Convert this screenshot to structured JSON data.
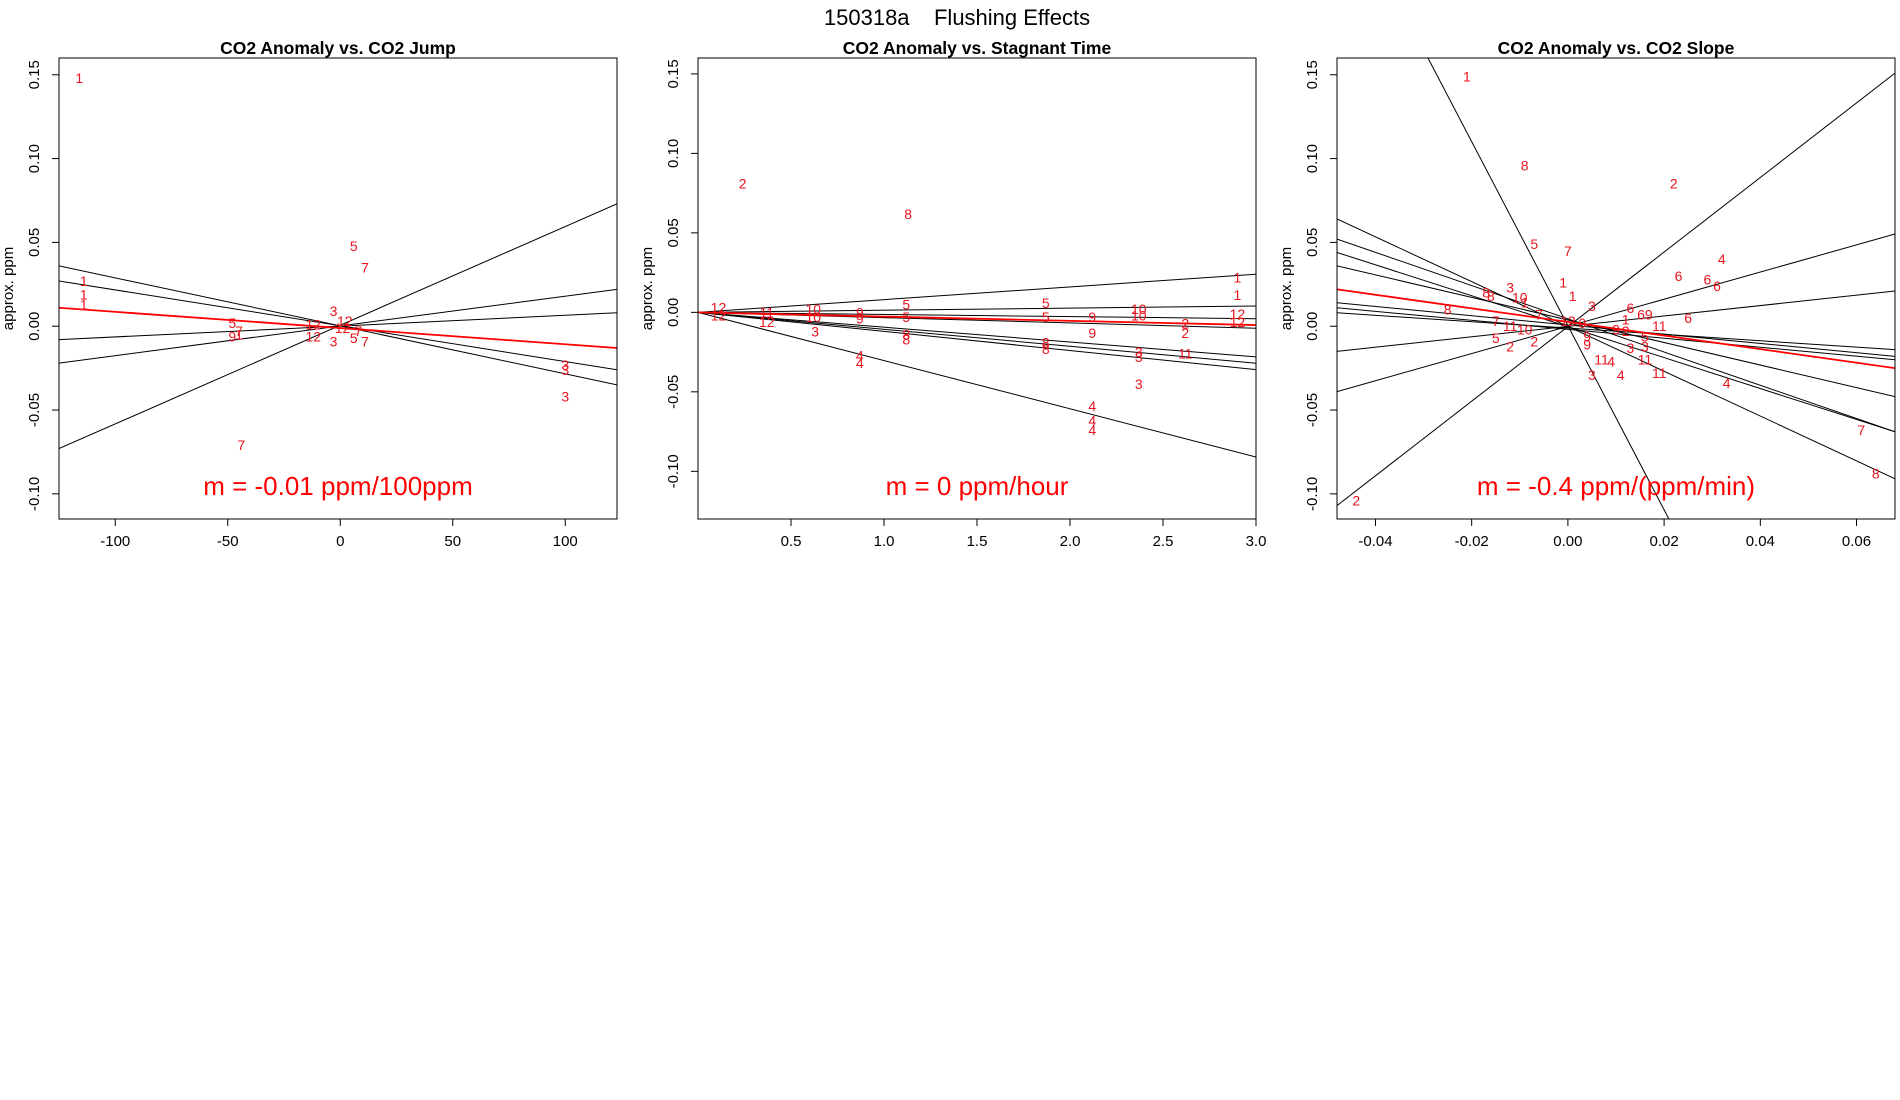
{
  "supertitle": "150318a    Flushing Effects",
  "chart_data": [
    {
      "type": "scatter",
      "title": "CO2 Anomaly vs. CO2 Jump",
      "ylabel": "approx. ppm",
      "xlim": [
        -125,
        123
      ],
      "ylim": [
        -0.115,
        0.16
      ],
      "xticks": [
        -100,
        -50,
        0,
        50,
        100
      ],
      "xticklabels": [
        "-100",
        "-50",
        "0",
        "50",
        "100"
      ],
      "yticks": [
        -0.1,
        -0.05,
        0.0,
        0.05,
        0.1,
        0.15
      ],
      "yticklabels": [
        "-0.10",
        "-0.05",
        "0.00",
        "0.05",
        "0.10",
        "0.15"
      ],
      "slope_label": "m = -0.01 ppm/100ppm",
      "fit_lines": [
        {
          "x1": -125,
          "y1": 0.036,
          "x2": 123,
          "y2": -0.035
        },
        {
          "x1": -125,
          "y1": 0.027,
          "x2": 123,
          "y2": -0.026
        },
        {
          "x1": -125,
          "y1": -0.073,
          "x2": 123,
          "y2": 0.073
        },
        {
          "x1": -125,
          "y1": -0.022,
          "x2": 123,
          "y2": 0.022
        },
        {
          "x1": -125,
          "y1": -0.008,
          "x2": 123,
          "y2": 0.008
        }
      ],
      "mean_line": {
        "x1": -125,
        "y1": 0.011,
        "x2": 123,
        "y2": -0.013
      },
      "points": [
        {
          "x": -116,
          "y": 0.148,
          "label": "1"
        },
        {
          "x": -114,
          "y": 0.027,
          "label": "1"
        },
        {
          "x": -114,
          "y": 0.019,
          "label": "1"
        },
        {
          "x": -114,
          "y": 0.013,
          "label": "1"
        },
        {
          "x": 6,
          "y": 0.048,
          "label": "5"
        },
        {
          "x": 11,
          "y": 0.035,
          "label": "7"
        },
        {
          "x": -3,
          "y": 0.009,
          "label": "3"
        },
        {
          "x": 2,
          "y": 0.003,
          "label": "12"
        },
        {
          "x": -12,
          "y": 0.001,
          "label": "12"
        },
        {
          "x": -12,
          "y": -0.006,
          "label": "12"
        },
        {
          "x": -3,
          "y": -0.009,
          "label": "3"
        },
        {
          "x": 6,
          "y": -0.007,
          "label": "5"
        },
        {
          "x": 11,
          "y": -0.009,
          "label": "7"
        },
        {
          "x": 8,
          "y": -0.003,
          "label": "7"
        },
        {
          "x": 1,
          "y": -0.001,
          "label": "12"
        },
        {
          "x": -48,
          "y": 0.002,
          "label": "5"
        },
        {
          "x": -45,
          "y": -0.003,
          "label": "7"
        },
        {
          "x": -48,
          "y": -0.006,
          "label": "9"
        },
        {
          "x": -45,
          "y": -0.005,
          "label": "1"
        },
        {
          "x": 100,
          "y": -0.023,
          "label": "3"
        },
        {
          "x": 100,
          "y": -0.026,
          "label": "3"
        },
        {
          "x": 100,
          "y": -0.042,
          "label": "3"
        },
        {
          "x": -44,
          "y": -0.071,
          "label": "7"
        }
      ]
    },
    {
      "type": "scatter",
      "title": "CO2 Anomaly vs. Stagnant Time",
      "ylabel": "approx. ppm",
      "xlim": [
        0,
        3.0
      ],
      "ylim": [
        -0.13,
        0.16
      ],
      "xticks": [
        0.5,
        1.0,
        1.5,
        2.0,
        2.5,
        3.0
      ],
      "xticklabels": [
        "0.5",
        "1.0",
        "1.5",
        "2.0",
        "2.5",
        "3.0"
      ],
      "yticks": [
        -0.1,
        -0.05,
        0.0,
        0.05,
        0.1,
        0.15
      ],
      "yticklabels": [
        "-0.10",
        "-0.05",
        "0.00",
        "0.05",
        "0.10",
        "0.15"
      ],
      "slope_label": "m = 0 ppm/hour",
      "fit_lines": [
        {
          "x1": 0,
          "y1": 0.0,
          "x2": 3.0,
          "y2": 0.024
        },
        {
          "x1": 0,
          "y1": 0.0,
          "x2": 3.0,
          "y2": 0.004
        },
        {
          "x1": 0,
          "y1": 0.0,
          "x2": 3.0,
          "y2": -0.004
        },
        {
          "x1": 0,
          "y1": 0.0,
          "x2": 3.0,
          "y2": -0.01
        },
        {
          "x1": 0,
          "y1": 0.0,
          "x2": 3.0,
          "y2": -0.028
        },
        {
          "x1": 0,
          "y1": 0.0,
          "x2": 3.0,
          "y2": -0.032
        },
        {
          "x1": 0,
          "y1": 0.0,
          "x2": 3.0,
          "y2": -0.036
        },
        {
          "x1": 0,
          "y1": 0.0,
          "x2": 3.0,
          "y2": -0.091
        }
      ],
      "mean_line": {
        "x1": 0,
        "y1": 0.0,
        "x2": 3.0,
        "y2": -0.008
      },
      "points": [
        {
          "x": 0.24,
          "y": 0.081,
          "label": "2"
        },
        {
          "x": 1.13,
          "y": 0.062,
          "label": "8"
        },
        {
          "x": 2.9,
          "y": 0.022,
          "label": "1"
        },
        {
          "x": 2.9,
          "y": 0.011,
          "label": "1"
        },
        {
          "x": 1.12,
          "y": 0.005,
          "label": "5"
        },
        {
          "x": 1.12,
          "y": -0.003,
          "label": "5"
        },
        {
          "x": 1.87,
          "y": 0.006,
          "label": "5"
        },
        {
          "x": 1.87,
          "y": -0.003,
          "label": "5"
        },
        {
          "x": 0.62,
          "y": 0.002,
          "label": "10"
        },
        {
          "x": 0.62,
          "y": -0.003,
          "label": "10"
        },
        {
          "x": 0.87,
          "y": 0.0,
          "label": "9"
        },
        {
          "x": 0.87,
          "y": -0.004,
          "label": "9"
        },
        {
          "x": 2.12,
          "y": -0.003,
          "label": "9"
        },
        {
          "x": 2.12,
          "y": -0.013,
          "label": "9"
        },
        {
          "x": 2.37,
          "y": 0.002,
          "label": "10"
        },
        {
          "x": 2.37,
          "y": -0.002,
          "label": "10"
        },
        {
          "x": 0.37,
          "y": 0.0,
          "label": "11"
        },
        {
          "x": 0.37,
          "y": -0.006,
          "label": "12"
        },
        {
          "x": 0.63,
          "y": -0.012,
          "label": "3"
        },
        {
          "x": 2.62,
          "y": -0.007,
          "label": "2"
        },
        {
          "x": 2.62,
          "y": -0.013,
          "label": "2"
        },
        {
          "x": 2.9,
          "y": -0.001,
          "label": "12"
        },
        {
          "x": 2.9,
          "y": -0.006,
          "label": "12"
        },
        {
          "x": 0.11,
          "y": 0.003,
          "label": "12"
        },
        {
          "x": 0.11,
          "y": -0.002,
          "label": "12"
        },
        {
          "x": 1.12,
          "y": -0.014,
          "label": "8"
        },
        {
          "x": 1.12,
          "y": -0.017,
          "label": "8"
        },
        {
          "x": 1.87,
          "y": -0.019,
          "label": "8"
        },
        {
          "x": 1.87,
          "y": -0.023,
          "label": "8"
        },
        {
          "x": 2.37,
          "y": -0.025,
          "label": "3"
        },
        {
          "x": 2.37,
          "y": -0.028,
          "label": "3"
        },
        {
          "x": 2.62,
          "y": -0.026,
          "label": "11"
        },
        {
          "x": 0.87,
          "y": -0.027,
          "label": "4"
        },
        {
          "x": 0.87,
          "y": -0.032,
          "label": "4"
        },
        {
          "x": 2.37,
          "y": -0.045,
          "label": "3"
        },
        {
          "x": 2.12,
          "y": -0.059,
          "label": "4"
        },
        {
          "x": 2.12,
          "y": -0.068,
          "label": "4"
        },
        {
          "x": 2.12,
          "y": -0.074,
          "label": "4"
        }
      ]
    },
    {
      "type": "scatter",
      "title": "CO2 Anomaly vs. CO2 Slope",
      "ylabel": "approx. ppm",
      "xlim": [
        -0.048,
        0.068
      ],
      "ylim": [
        -0.115,
        0.16
      ],
      "xticks": [
        -0.04,
        -0.02,
        0.0,
        0.02,
        0.04,
        0.06
      ],
      "xticklabels": [
        "-0.04",
        "-0.02",
        "0.00",
        "0.02",
        "0.04",
        "0.06"
      ],
      "yticks": [
        -0.1,
        -0.05,
        0.0,
        0.05,
        0.1,
        0.15
      ],
      "yticklabels": [
        "-0.10",
        "-0.05",
        "0.00",
        "0.05",
        "0.10",
        "0.15"
      ],
      "slope_label": "m = -0.4 ppm/(ppm/min)",
      "fit_lines": [
        {
          "x1": -0.048,
          "y1": -0.107,
          "x2": 0.068,
          "y2": 0.151
        },
        {
          "x1": -0.03,
          "y1": 0.165,
          "x2": 0.021,
          "y2": -0.115
        },
        {
          "x1": -0.048,
          "y1": 0.064,
          "x2": 0.068,
          "y2": -0.091
        },
        {
          "x1": -0.048,
          "y1": 0.052,
          "x2": 0.068,
          "y2": -0.063
        },
        {
          "x1": -0.048,
          "y1": 0.044,
          "x2": 0.068,
          "y2": -0.063
        },
        {
          "x1": -0.048,
          "y1": 0.036,
          "x2": 0.068,
          "y2": -0.042
        },
        {
          "x1": -0.048,
          "y1": 0.014,
          "x2": 0.068,
          "y2": -0.018
        },
        {
          "x1": -0.048,
          "y1": 0.011,
          "x2": 0.068,
          "y2": -0.02
        },
        {
          "x1": -0.048,
          "y1": 0.008,
          "x2": 0.068,
          "y2": -0.014
        },
        {
          "x1": -0.048,
          "y1": -0.039,
          "x2": 0.068,
          "y2": 0.055
        },
        {
          "x1": -0.048,
          "y1": -0.015,
          "x2": 0.068,
          "y2": 0.021
        }
      ],
      "mean_line": {
        "x1": -0.048,
        "y1": 0.022,
        "x2": 0.068,
        "y2": -0.025
      },
      "points": [
        {
          "x": -0.021,
          "y": 0.149,
          "label": "1"
        },
        {
          "x": -0.009,
          "y": 0.096,
          "label": "8"
        },
        {
          "x": 0.022,
          "y": 0.085,
          "label": "2"
        },
        {
          "x": -0.007,
          "y": 0.049,
          "label": "5"
        },
        {
          "x": 0.0,
          "y": 0.045,
          "label": "7"
        },
        {
          "x": 0.032,
          "y": 0.04,
          "label": "4"
        },
        {
          "x": 0.023,
          "y": 0.03,
          "label": "6"
        },
        {
          "x": 0.029,
          "y": 0.028,
          "label": "6"
        },
        {
          "x": 0.031,
          "y": 0.024,
          "label": "6"
        },
        {
          "x": -0.001,
          "y": 0.026,
          "label": "1"
        },
        {
          "x": 0.001,
          "y": 0.018,
          "label": "1"
        },
        {
          "x": -0.012,
          "y": 0.023,
          "label": "3"
        },
        {
          "x": -0.017,
          "y": 0.02,
          "label": "8"
        },
        {
          "x": -0.016,
          "y": 0.018,
          "label": "8"
        },
        {
          "x": -0.025,
          "y": 0.01,
          "label": "8"
        },
        {
          "x": -0.01,
          "y": 0.017,
          "label": "10"
        },
        {
          "x": -0.009,
          "y": 0.014,
          "label": "1"
        },
        {
          "x": 0.005,
          "y": 0.012,
          "label": "3"
        },
        {
          "x": 0.013,
          "y": 0.011,
          "label": "6"
        },
        {
          "x": 0.016,
          "y": 0.007,
          "label": "69"
        },
        {
          "x": 0.012,
          "y": 0.004,
          "label": "1"
        },
        {
          "x": 0.025,
          "y": 0.005,
          "label": "6"
        },
        {
          "x": 0.019,
          "y": 0.0,
          "label": "11"
        },
        {
          "x": -0.015,
          "y": 0.003,
          "label": "7"
        },
        {
          "x": -0.006,
          "y": 0.007,
          "label": "7"
        },
        {
          "x": -0.012,
          "y": 0.0,
          "label": "11"
        },
        {
          "x": -0.009,
          "y": -0.002,
          "label": "10"
        },
        {
          "x": -0.015,
          "y": -0.007,
          "label": "5"
        },
        {
          "x": -0.012,
          "y": -0.012,
          "label": "2"
        },
        {
          "x": -0.007,
          "y": -0.009,
          "label": "2"
        },
        {
          "x": 0.0,
          "y": 0.003,
          "label": "12"
        },
        {
          "x": 0.003,
          "y": 0.002,
          "label": "0"
        },
        {
          "x": 0.004,
          "y": -0.006,
          "label": "9"
        },
        {
          "x": 0.01,
          "y": -0.002,
          "label": "9"
        },
        {
          "x": 0.012,
          "y": -0.003,
          "label": "2"
        },
        {
          "x": 0.016,
          "y": -0.006,
          "label": "5"
        },
        {
          "x": 0.004,
          "y": -0.011,
          "label": "9"
        },
        {
          "x": 0.013,
          "y": -0.013,
          "label": "3"
        },
        {
          "x": 0.016,
          "y": -0.012,
          "label": "3"
        },
        {
          "x": 0.007,
          "y": -0.02,
          "label": "11"
        },
        {
          "x": 0.016,
          "y": -0.02,
          "label": "11"
        },
        {
          "x": 0.019,
          "y": -0.028,
          "label": "11"
        },
        {
          "x": 0.009,
          "y": -0.021,
          "label": "4"
        },
        {
          "x": 0.011,
          "y": -0.029,
          "label": "4"
        },
        {
          "x": 0.005,
          "y": -0.029,
          "label": "3"
        },
        {
          "x": 0.033,
          "y": -0.034,
          "label": "4"
        },
        {
          "x": 0.061,
          "y": -0.062,
          "label": "7"
        },
        {
          "x": 0.064,
          "y": -0.088,
          "label": "8"
        },
        {
          "x": -0.044,
          "y": -0.104,
          "label": "2"
        }
      ]
    }
  ]
}
